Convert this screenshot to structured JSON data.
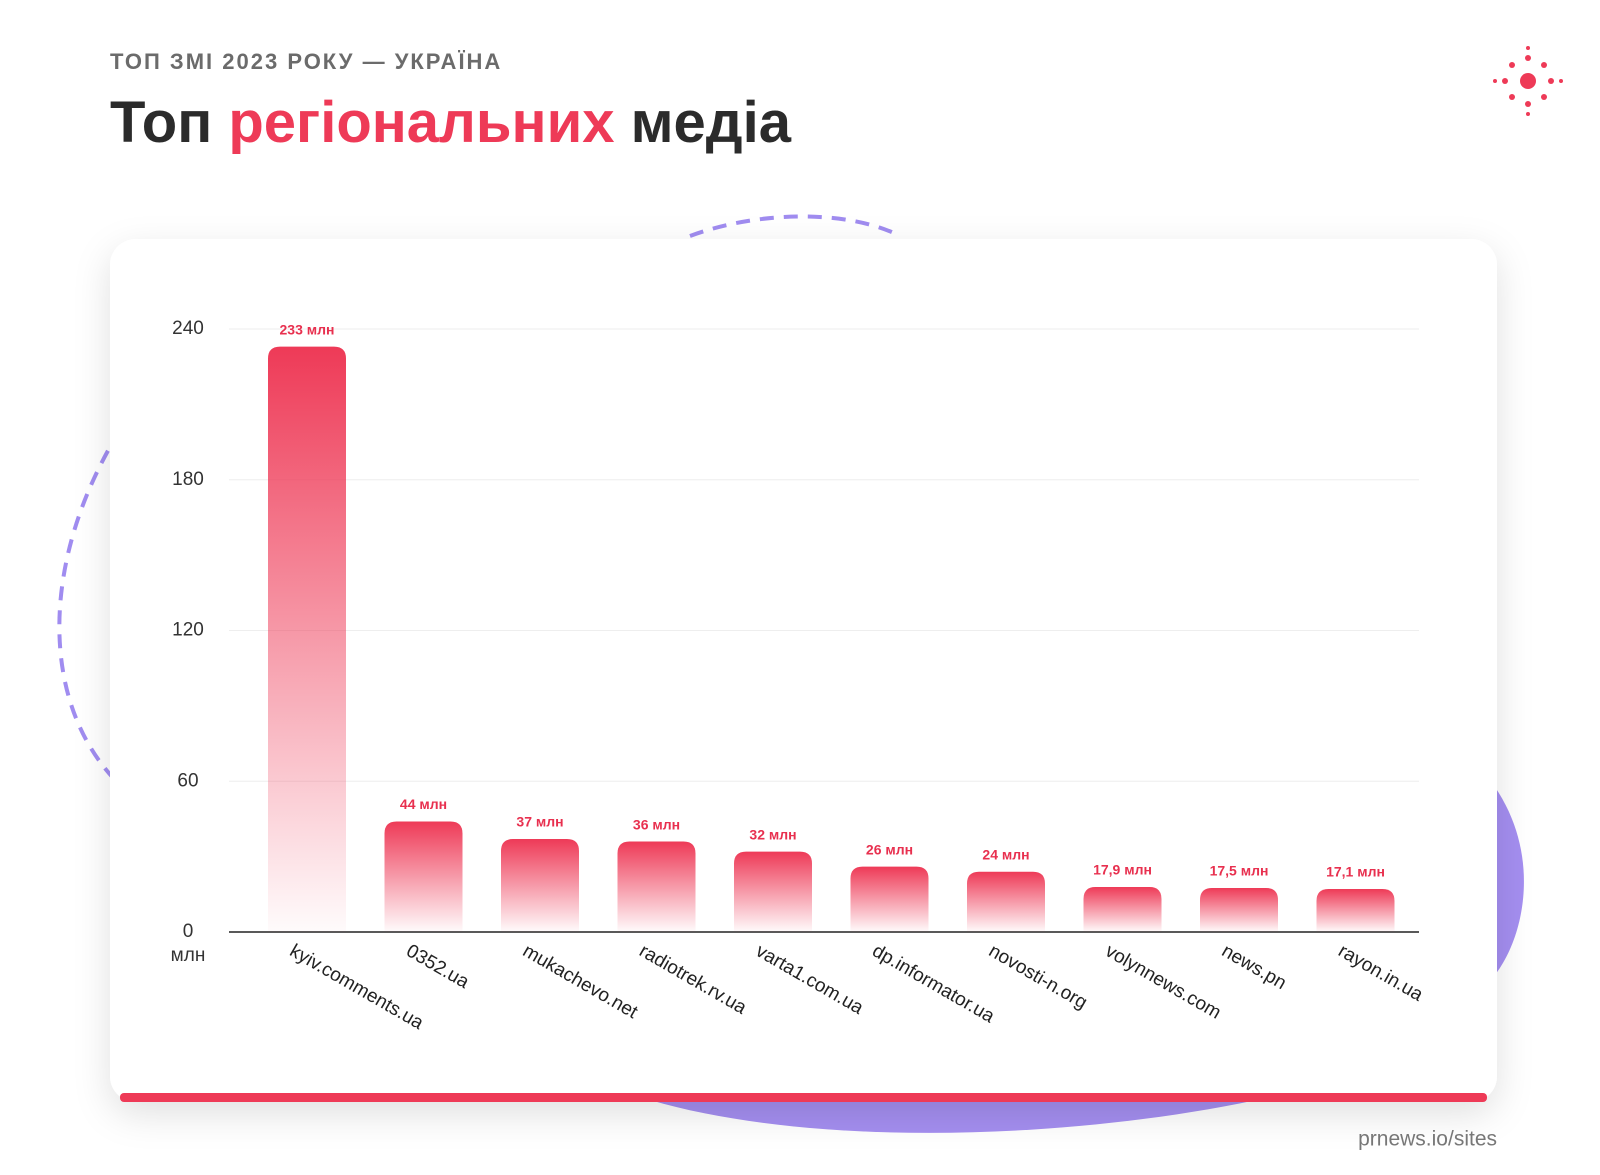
{
  "supertitle": "ТОП ЗМІ 2023 РОКУ — УКРАЇНА",
  "title": {
    "before": "Топ",
    "highlight": "регіональних",
    "after": "медіа"
  },
  "source": "prnews.io/sites",
  "chart_data": {
    "type": "bar",
    "color": "#ee3a57",
    "grid": true,
    "categories": [
      "kyiv.comments.ua",
      "0352.ua",
      "mukachevo.net",
      "radiotrek.rv.ua",
      "varta1.com.ua",
      "dp.informator.ua",
      "novosti-n.org",
      "volynnews.com",
      "news.pn",
      "rayon.in.ua"
    ],
    "values": [
      233,
      44,
      37,
      36,
      32,
      26,
      24,
      17.9,
      17.5,
      17.1
    ],
    "value_labels": [
      "233 млн",
      "44 млн",
      "37 млн",
      "36 млн",
      "32 млн",
      "26 млн",
      "24 млн",
      "17,9 млн",
      "17,5 млн",
      "17,1 млн"
    ],
    "ylim": [
      0,
      240
    ],
    "yticks": [
      0,
      60,
      120,
      180,
      240
    ],
    "y_unit": "млн"
  }
}
